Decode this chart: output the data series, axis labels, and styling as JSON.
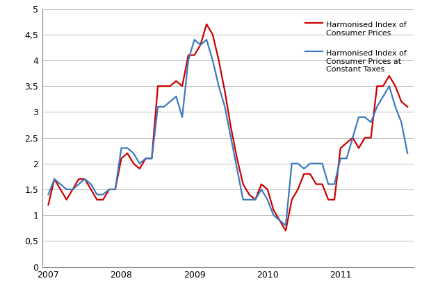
{
  "hicp": [
    1.2,
    1.7,
    1.5,
    1.3,
    1.5,
    1.7,
    1.7,
    1.5,
    1.3,
    1.3,
    1.5,
    1.5,
    2.1,
    2.2,
    2.0,
    1.9,
    2.1,
    2.1,
    3.5,
    3.5,
    3.5,
    3.6,
    3.5,
    4.1,
    4.1,
    4.3,
    4.7,
    4.5,
    4.0,
    3.4,
    2.7,
    2.1,
    1.6,
    1.4,
    1.3,
    1.6,
    1.5,
    1.1,
    0.9,
    0.7,
    1.3,
    1.5,
    1.8,
    1.8,
    1.6,
    1.6,
    1.3,
    1.3,
    2.3,
    2.4,
    2.5,
    2.3,
    2.5,
    2.5,
    3.5,
    3.5,
    3.7,
    3.5,
    3.2,
    3.1
  ],
  "hicp_ct": [
    1.4,
    1.7,
    1.6,
    1.5,
    1.5,
    1.6,
    1.7,
    1.6,
    1.4,
    1.4,
    1.5,
    1.5,
    2.3,
    2.3,
    2.2,
    2.0,
    2.1,
    2.1,
    3.1,
    3.1,
    3.2,
    3.3,
    2.9,
    4.0,
    4.4,
    4.3,
    4.4,
    4.0,
    3.5,
    3.1,
    2.5,
    1.9,
    1.3,
    1.3,
    1.3,
    1.5,
    1.3,
    1.0,
    0.9,
    0.8,
    2.0,
    2.0,
    1.9,
    2.0,
    2.0,
    2.0,
    1.6,
    1.6,
    2.1,
    2.1,
    2.5,
    2.9,
    2.9,
    2.8,
    3.1,
    3.3,
    3.5,
    3.1,
    2.8,
    2.2
  ],
  "hicp_color": "#cc0000",
  "hicp_ct_color": "#3c7abf",
  "hicp_label": "Harmonised Index of\nConsumer Prices",
  "hicp_ct_label": "Harmonised Index of\nConsumer Prices at\nConstant Taxes",
  "xtick_labels": [
    "2007",
    "2008",
    "2009",
    "2010",
    "2011"
  ],
  "xtick_positions": [
    0,
    12,
    24,
    36,
    48
  ],
  "ytick_labels": [
    "0",
    "0,5",
    "1",
    "1,5",
    "2",
    "2,5",
    "3",
    "3,5",
    "4",
    "4,5",
    "5"
  ],
  "ytick_values": [
    0,
    0.5,
    1.0,
    1.5,
    2.0,
    2.5,
    3.0,
    3.5,
    4.0,
    4.5,
    5.0
  ],
  "ylim": [
    0,
    5.0
  ],
  "xlim": [
    -1,
    60
  ],
  "line_width": 1.6,
  "background_color": "#ffffff",
  "grid_color": "#bbbbbb",
  "spine_color": "#888888",
  "font_size_ticks": 9,
  "font_size_legend": 8,
  "fig_width": 6.07,
  "fig_height": 4.18,
  "dpi": 100
}
